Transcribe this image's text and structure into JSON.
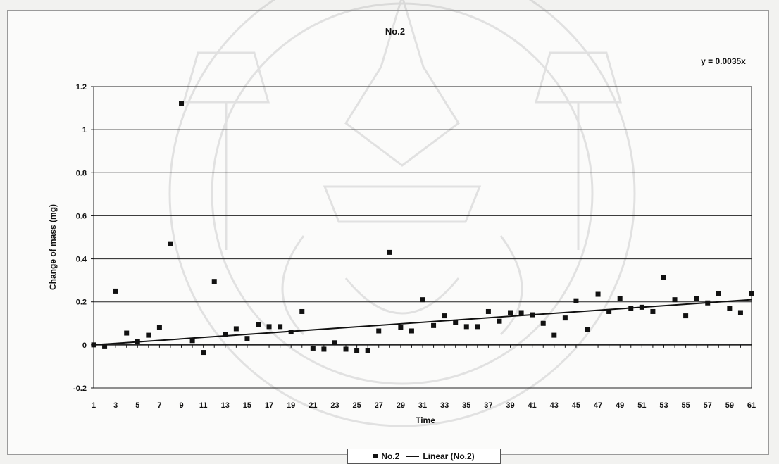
{
  "chart_data": {
    "type": "scatter",
    "title": "No.2",
    "xlabel": "Time",
    "ylabel": "Change of mass (mg)",
    "equation": "y = 0.0035x",
    "xlim": [
      1,
      61
    ],
    "ylim": [
      -0.2,
      1.2
    ],
    "y_ticks": [
      "-0.2",
      "0",
      "0.2",
      "0.4",
      "0.6",
      "0.8",
      "1",
      "1.2"
    ],
    "x_ticks": [
      "1",
      "3",
      "5",
      "7",
      "9",
      "11",
      "13",
      "15",
      "17",
      "19",
      "21",
      "23",
      "25",
      "27",
      "29",
      "31",
      "33",
      "35",
      "37",
      "39",
      "41",
      "43",
      "45",
      "47",
      "49",
      "51",
      "53",
      "55",
      "57",
      "59",
      "61"
    ],
    "grid": "horizontal",
    "legend_position": "bottom",
    "series": [
      {
        "name": "No.2",
        "marker": "square",
        "x": [
          1,
          2,
          3,
          4,
          5,
          6,
          7,
          8,
          9,
          10,
          11,
          12,
          13,
          14,
          15,
          16,
          17,
          18,
          19,
          20,
          21,
          22,
          23,
          24,
          25,
          26,
          27,
          28,
          29,
          30,
          31,
          32,
          33,
          34,
          35,
          36,
          37,
          38,
          39,
          40,
          41,
          42,
          43,
          44,
          45,
          46,
          47,
          48,
          49,
          50,
          51,
          52,
          53,
          54,
          55,
          56,
          57,
          58,
          59,
          60,
          61
        ],
        "y": [
          0,
          -0.005,
          0.25,
          0.055,
          0.015,
          0.045,
          0.08,
          0.47,
          1.12,
          0.02,
          -0.035,
          0.295,
          0.05,
          0.075,
          0.03,
          0.095,
          0.085,
          0.085,
          0.06,
          0.155,
          -0.015,
          -0.02,
          0.01,
          -0.02,
          -0.025,
          -0.025,
          0.065,
          0.43,
          0.08,
          0.065,
          0.21,
          0.09,
          0.135,
          0.105,
          0.085,
          0.085,
          0.155,
          0.11,
          0.15,
          0.15,
          0.14,
          0.1,
          0.045,
          0.125,
          0.205,
          0.07,
          0.235,
          0.155,
          0.215,
          0.17,
          0.175,
          0.155,
          0.315,
          0.21,
          0.135,
          0.215,
          0.195,
          0.24,
          0.17,
          0.15,
          0.24
        ]
      },
      {
        "name": "Linear (No.2)",
        "type": "line",
        "slope": 0.0035,
        "intercept": 0
      }
    ]
  }
}
